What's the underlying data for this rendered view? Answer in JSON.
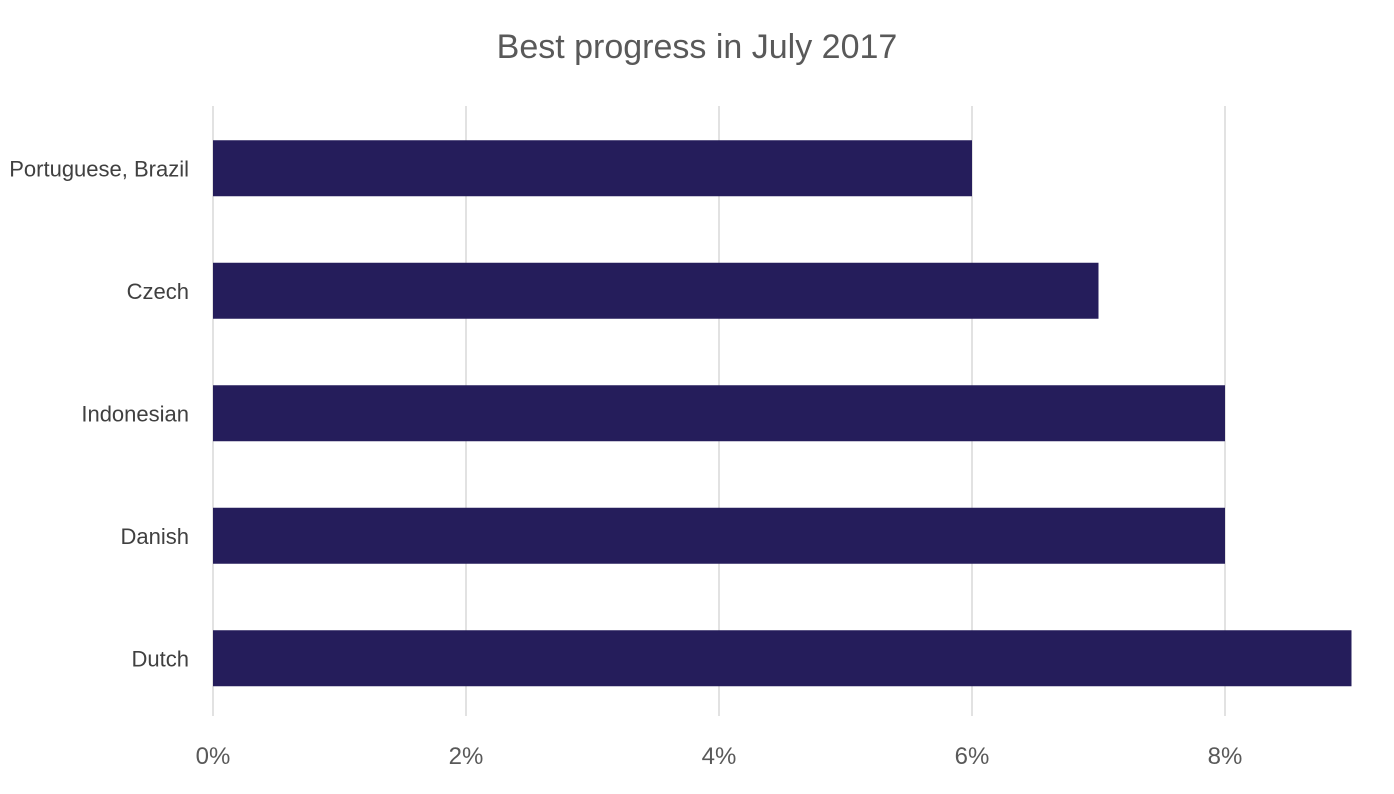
{
  "chart_data": {
    "type": "bar",
    "orientation": "horizontal",
    "title": "Best progress in July 2017",
    "xlabel": "",
    "ylabel": "",
    "categories": [
      "Portuguese, Brazil",
      "Czech",
      "Indonesian",
      "Danish",
      "Dutch"
    ],
    "values": [
      6,
      7,
      8,
      8,
      9
    ],
    "unit": "%",
    "xlim": [
      0,
      9
    ],
    "xticks": [
      "0%",
      "2%",
      "4%",
      "6%",
      "8%"
    ],
    "xtick_values": [
      0,
      2,
      4,
      6,
      8
    ],
    "grid": true,
    "legend": "none",
    "bar_color": "#251d5b"
  }
}
